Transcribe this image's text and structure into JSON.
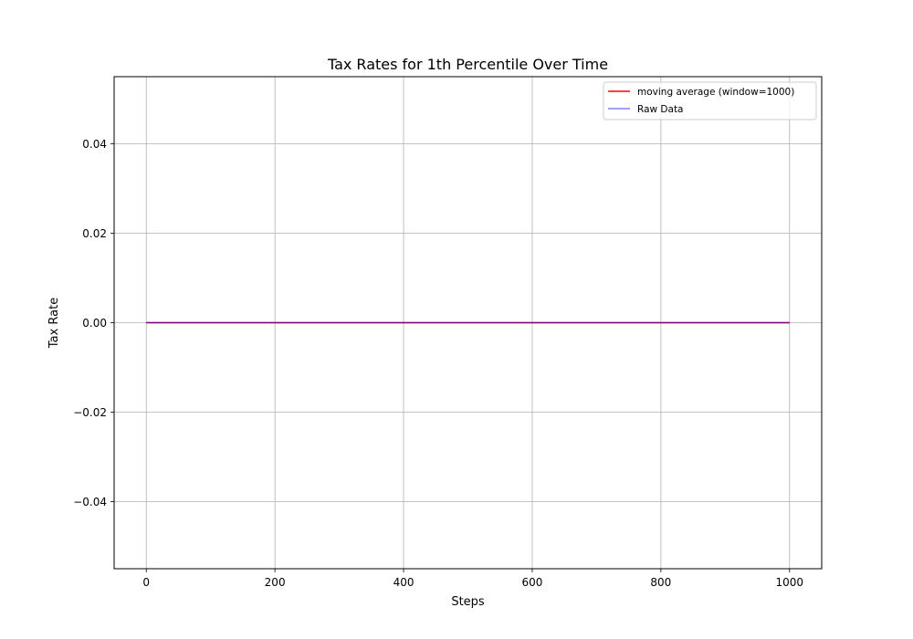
{
  "chart_data": {
    "type": "line",
    "title": "Tax Rates for 1th Percentile Over Time",
    "xlabel": "Steps",
    "ylabel": "Tax Rate",
    "xlim": [
      -50,
      1050
    ],
    "ylim": [
      -0.055,
      0.055
    ],
    "x_ticks": [
      0,
      200,
      400,
      600,
      800,
      1000
    ],
    "x_tick_labels": [
      "0",
      "200",
      "400",
      "600",
      "800",
      "1000"
    ],
    "y_ticks": [
      -0.04,
      -0.02,
      0.0,
      0.02,
      0.04
    ],
    "y_tick_labels": [
      "−0.04",
      "−0.02",
      "0.00",
      "0.02",
      "0.04"
    ],
    "grid": true,
    "legend_position": "top-right",
    "series": [
      {
        "name": "moving average (window=1000)",
        "color": "#ff0000",
        "opacity": 1.0,
        "x": [
          0,
          1000
        ],
        "y": [
          0.0,
          0.0
        ]
      },
      {
        "name": "Raw Data",
        "color": "#0000ff",
        "opacity": 0.5,
        "x": [
          0,
          1000
        ],
        "y": [
          0.0,
          0.0
        ]
      }
    ]
  }
}
